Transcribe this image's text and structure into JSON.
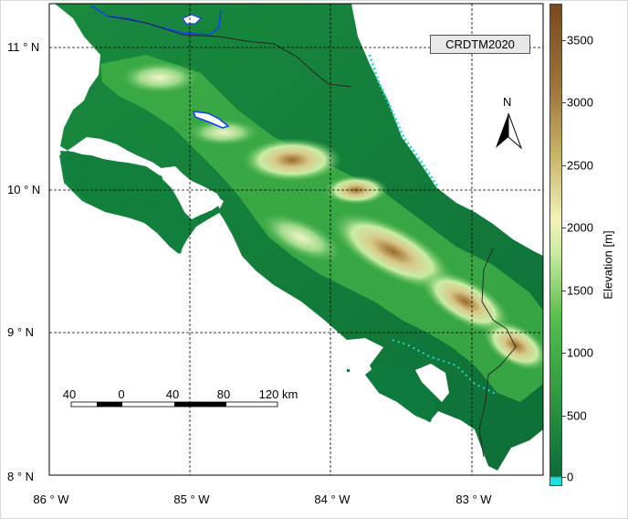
{
  "map": {
    "title": "CRDTM2020",
    "north_label": "N",
    "lat_labels": [
      "11 ° N",
      "10 ° N",
      "9 ° N",
      "8 ° N"
    ],
    "lon_labels": [
      "86 ° W",
      "85 ° W",
      "84 ° W",
      "83 ° W"
    ],
    "colorbar": {
      "label": "Elevation [m]",
      "ticks": [
        "3500",
        "3000",
        "2500",
        "2000",
        "1500",
        "1000",
        "500",
        "0"
      ]
    },
    "scalebar": {
      "labels": [
        "40",
        "0",
        "40",
        "80",
        "120 km"
      ]
    },
    "colors": {
      "lowland": "#0b6a3a",
      "mid": "#3aa845",
      "highland": "#c8eb9a",
      "peak": "#8a5a20",
      "water": "#ffffff",
      "lake": "#1040ff",
      "colorbar_zero": "#1fe0e0"
    }
  }
}
